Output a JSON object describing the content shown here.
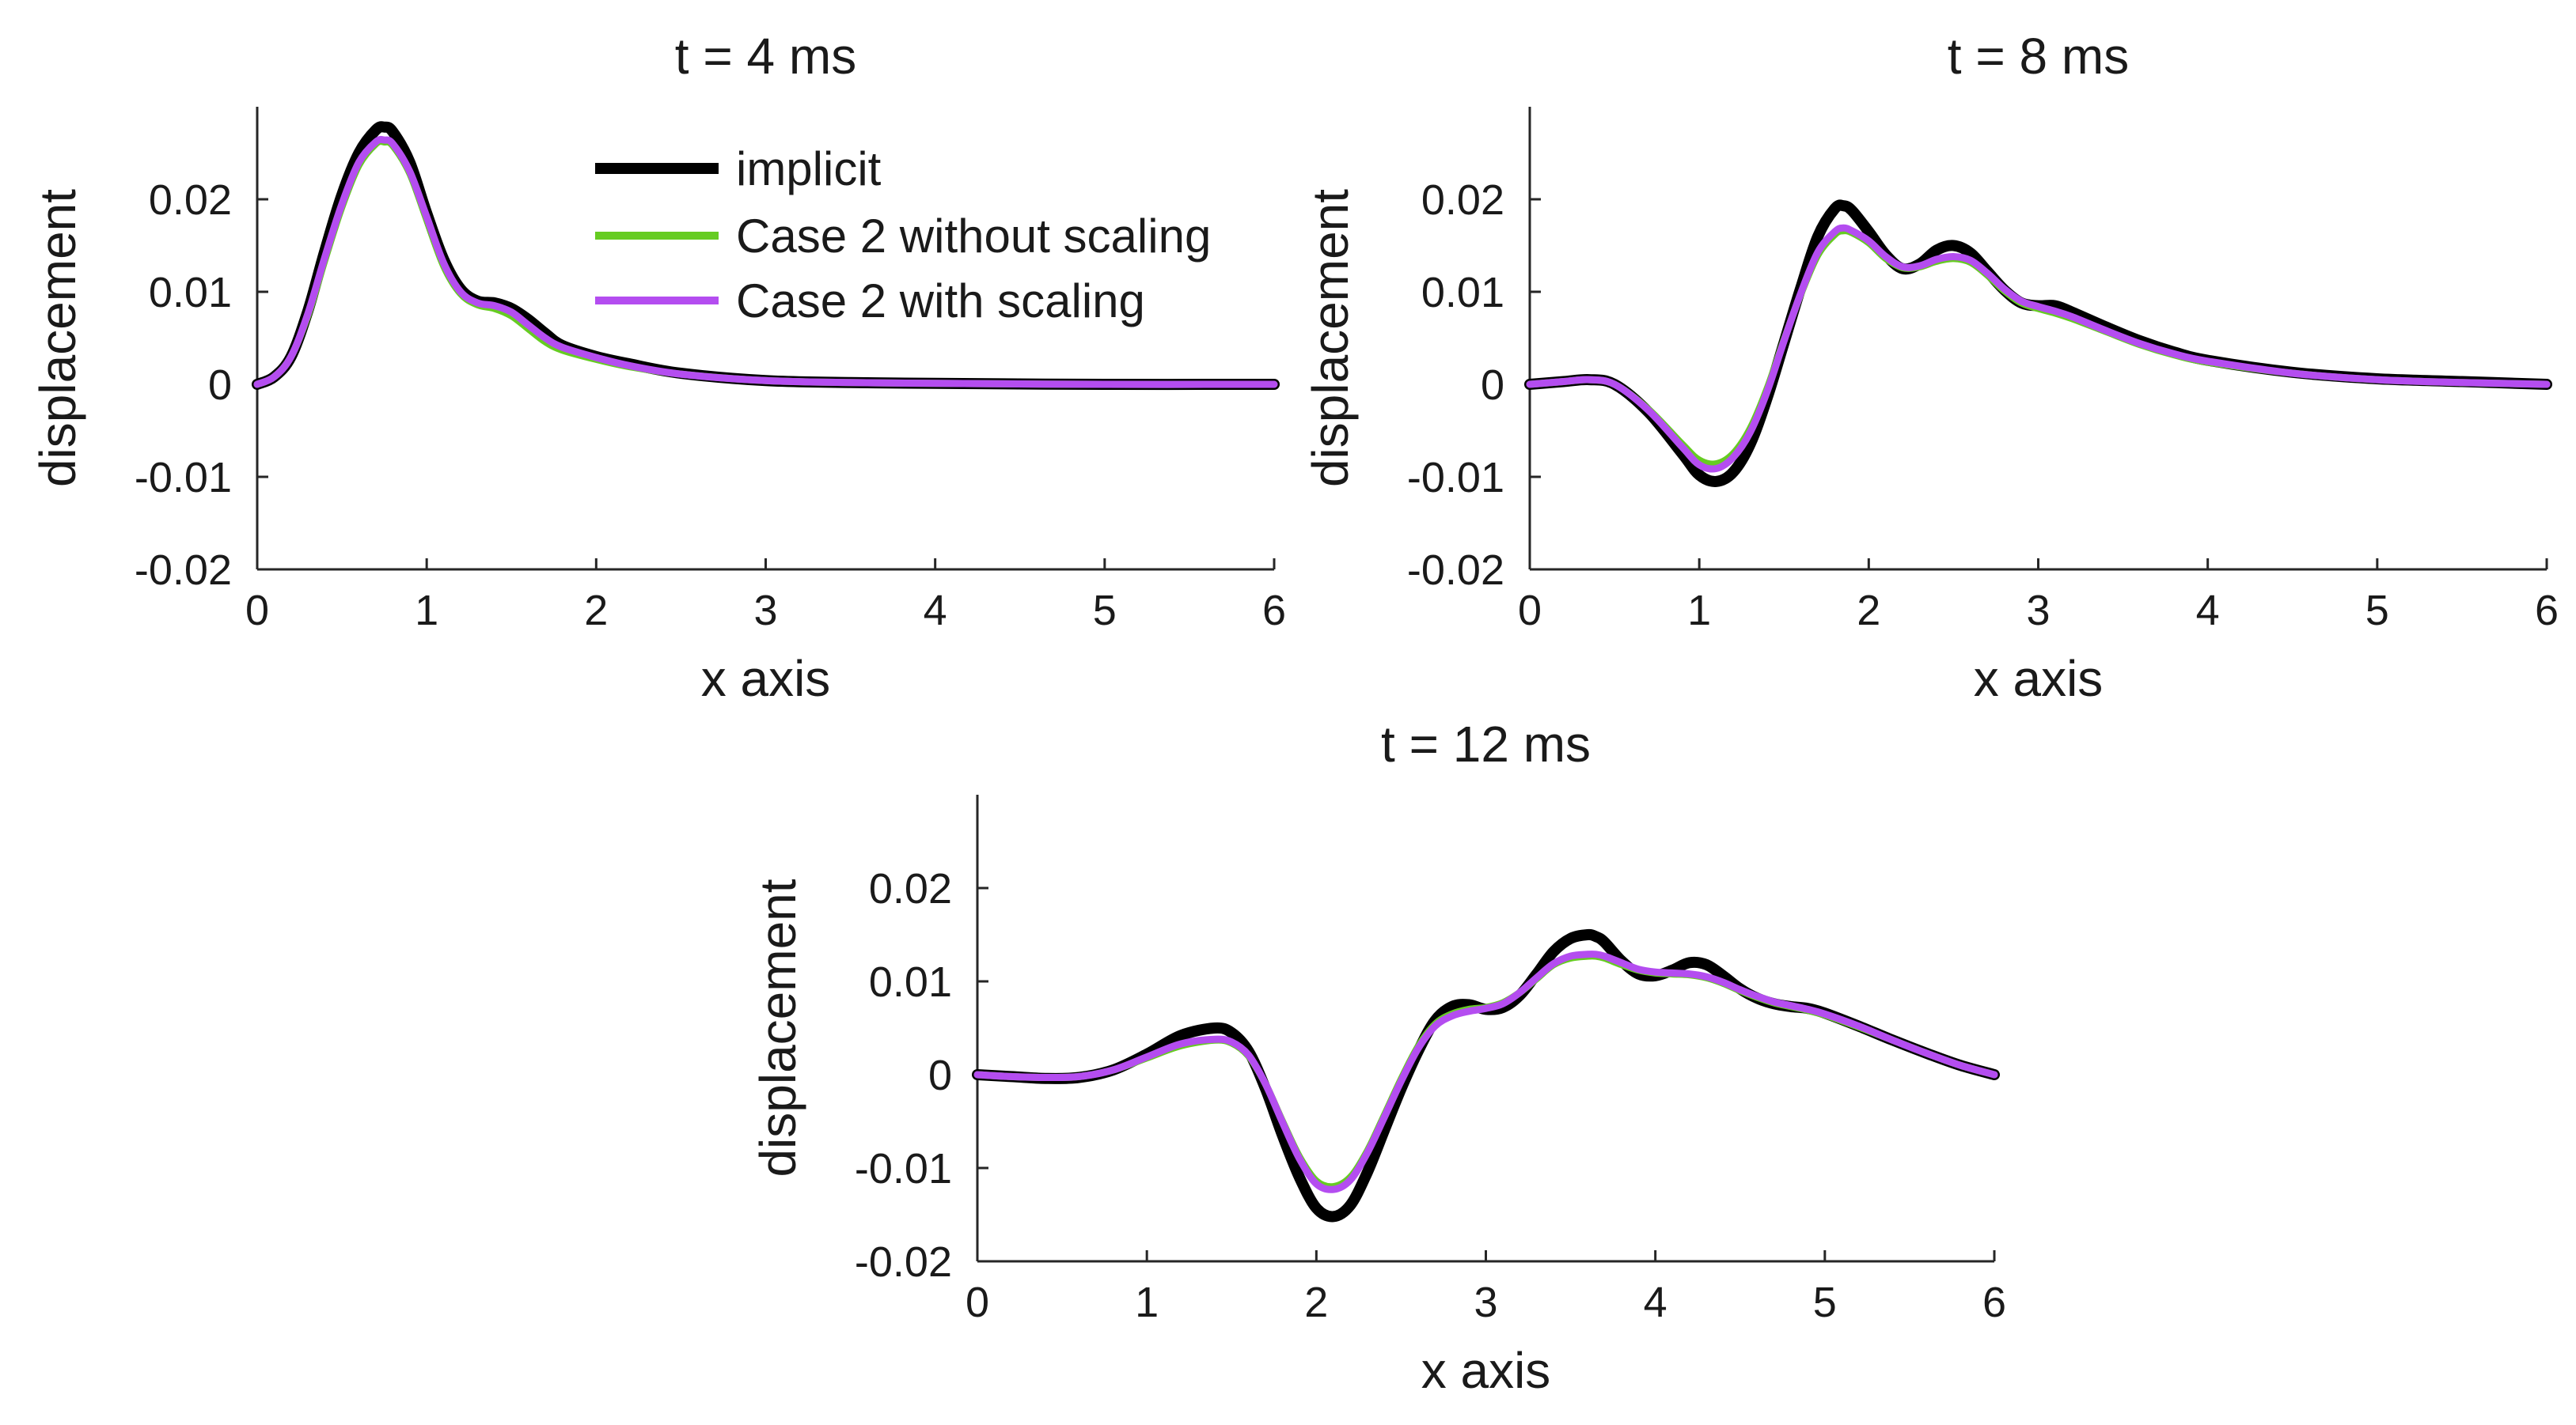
{
  "chart_data": [
    {
      "type": "line",
      "title": "t = 4 ms",
      "xlabel": "x axis",
      "ylabel": "displacement",
      "xlim": [
        0,
        6
      ],
      "ylim": [
        -0.02,
        0.03
      ],
      "xticks": [
        "0",
        "1",
        "2",
        "3",
        "4",
        "5",
        "6"
      ],
      "yticks": [
        "-0.02",
        "-0.01",
        "0",
        "0.01",
        "0.02"
      ],
      "grid": false,
      "legend": "top-right (inside)",
      "series": [
        {
          "name": "implicit",
          "color": "#000000",
          "x": [
            0,
            0.1,
            0.2,
            0.3,
            0.4,
            0.5,
            0.6,
            0.7,
            0.75,
            0.8,
            0.9,
            1.0,
            1.1,
            1.2,
            1.3,
            1.4,
            1.5,
            1.6,
            1.7,
            1.8,
            2.0,
            2.2,
            2.5,
            3.0,
            3.5,
            4.0,
            5.0,
            6.0
          ],
          "y": [
            0,
            0.0008,
            0.003,
            0.008,
            0.0145,
            0.0205,
            0.025,
            0.0275,
            0.0278,
            0.0273,
            0.024,
            0.0185,
            0.0135,
            0.0103,
            0.009,
            0.0088,
            0.0082,
            0.007,
            0.0055,
            0.0042,
            0.003,
            0.0022,
            0.0012,
            0.0004,
            0.0002,
            0.0001,
            0,
            0
          ]
        },
        {
          "name": "Case 2 without scaling",
          "color": "#66cc22",
          "x": [
            0,
            0.1,
            0.2,
            0.3,
            0.4,
            0.5,
            0.6,
            0.7,
            0.75,
            0.8,
            0.9,
            1.0,
            1.1,
            1.2,
            1.3,
            1.4,
            1.5,
            1.6,
            1.7,
            1.8,
            2.0,
            2.2,
            2.5,
            3.0,
            3.5,
            4.0,
            5.0,
            6.0
          ],
          "y": [
            0,
            0.0008,
            0.003,
            0.0075,
            0.0135,
            0.0192,
            0.0237,
            0.026,
            0.0262,
            0.0258,
            0.0228,
            0.0178,
            0.0128,
            0.0098,
            0.0086,
            0.0082,
            0.0074,
            0.006,
            0.0046,
            0.0037,
            0.0027,
            0.0019,
            0.0011,
            0.0004,
            0.0002,
            0.0001,
            0,
            0
          ]
        },
        {
          "name": "Case 2 with scaling",
          "color": "#b44df0",
          "x": [
            0,
            0.1,
            0.2,
            0.3,
            0.4,
            0.5,
            0.6,
            0.7,
            0.75,
            0.8,
            0.9,
            1.0,
            1.1,
            1.2,
            1.3,
            1.4,
            1.5,
            1.6,
            1.7,
            1.8,
            2.0,
            2.2,
            2.5,
            3.0,
            3.5,
            4.0,
            5.0,
            6.0
          ],
          "y": [
            0,
            0.0008,
            0.003,
            0.0077,
            0.0138,
            0.0195,
            0.024,
            0.0262,
            0.0264,
            0.026,
            0.023,
            0.0181,
            0.0131,
            0.01,
            0.0088,
            0.0085,
            0.0078,
            0.0064,
            0.005,
            0.004,
            0.0029,
            0.002,
            0.0011,
            0.0004,
            0.0002,
            0.0001,
            0,
            0
          ]
        }
      ]
    },
    {
      "type": "line",
      "title": "t = 8 ms",
      "xlabel": "x axis",
      "ylabel": "displacement",
      "xlim": [
        0,
        6
      ],
      "ylim": [
        -0.02,
        0.03
      ],
      "xticks": [
        "0",
        "1",
        "2",
        "3",
        "4",
        "5",
        "6"
      ],
      "yticks": [
        "-0.02",
        "-0.01",
        "0",
        "0.01",
        "0.02"
      ],
      "grid": false,
      "series": [
        {
          "name": "implicit",
          "color": "#000000",
          "x": [
            0,
            0.2,
            0.35,
            0.5,
            0.7,
            0.9,
            1.0,
            1.1,
            1.2,
            1.3,
            1.4,
            1.5,
            1.6,
            1.7,
            1.8,
            1.85,
            1.9,
            2.0,
            2.1,
            2.2,
            2.3,
            2.4,
            2.5,
            2.6,
            2.7,
            2.8,
            2.9,
            3.0,
            3.1,
            3.2,
            3.4,
            3.6,
            3.8,
            4.0,
            4.5,
            5.0,
            5.5,
            6.0
          ],
          "y": [
            0,
            0.0003,
            0.0005,
            0.0,
            -0.003,
            -0.0075,
            -0.0098,
            -0.0105,
            -0.0095,
            -0.0065,
            -0.0015,
            0.0045,
            0.0105,
            0.016,
            0.019,
            0.0193,
            0.0188,
            0.0165,
            0.014,
            0.0125,
            0.013,
            0.0145,
            0.015,
            0.0142,
            0.0122,
            0.0102,
            0.0088,
            0.0085,
            0.0085,
            0.0078,
            0.0062,
            0.0047,
            0.0035,
            0.0026,
            0.0013,
            0.0006,
            0.0003,
            0
          ]
        },
        {
          "name": "Case 2 without scaling",
          "color": "#66cc22",
          "x": [
            0,
            0.2,
            0.35,
            0.5,
            0.7,
            0.9,
            1.0,
            1.1,
            1.2,
            1.3,
            1.4,
            1.5,
            1.6,
            1.7,
            1.8,
            1.85,
            1.9,
            2.0,
            2.1,
            2.2,
            2.3,
            2.4,
            2.5,
            2.6,
            2.7,
            2.8,
            2.9,
            3.0,
            3.1,
            3.2,
            3.4,
            3.6,
            3.8,
            4.0,
            4.5,
            5.0,
            5.5,
            6.0
          ],
          "y": [
            0,
            0.0003,
            0.0005,
            0.0,
            -0.0027,
            -0.0065,
            -0.0082,
            -0.0086,
            -0.0075,
            -0.0048,
            -0.0005,
            0.0048,
            0.0098,
            0.014,
            0.0162,
            0.0166,
            0.0164,
            0.0153,
            0.0136,
            0.0126,
            0.0127,
            0.0133,
            0.0136,
            0.0132,
            0.0118,
            0.0101,
            0.0088,
            0.0082,
            0.0077,
            0.0071,
            0.0057,
            0.0043,
            0.0032,
            0.0024,
            0.0012,
            0.0005,
            0.0002,
            0
          ]
        },
        {
          "name": "Case 2 with scaling",
          "color": "#b44df0",
          "x": [
            0,
            0.2,
            0.35,
            0.5,
            0.7,
            0.9,
            1.0,
            1.1,
            1.2,
            1.3,
            1.4,
            1.5,
            1.6,
            1.7,
            1.8,
            1.85,
            1.9,
            2.0,
            2.1,
            2.2,
            2.3,
            2.4,
            2.5,
            2.6,
            2.7,
            2.8,
            2.9,
            3.0,
            3.1,
            3.2,
            3.4,
            3.6,
            3.8,
            4.0,
            4.5,
            5.0,
            5.5,
            6.0
          ],
          "y": [
            0,
            0.0003,
            0.0005,
            0.0,
            -0.0028,
            -0.0068,
            -0.0087,
            -0.0091,
            -0.0079,
            -0.0052,
            -0.0008,
            0.0047,
            0.0099,
            0.0143,
            0.0165,
            0.0169,
            0.0166,
            0.0155,
            0.0138,
            0.0127,
            0.0128,
            0.0135,
            0.0138,
            0.0134,
            0.012,
            0.0103,
            0.009,
            0.0084,
            0.0079,
            0.0073,
            0.0058,
            0.0044,
            0.0033,
            0.0025,
            0.0012,
            0.0005,
            0.0002,
            0
          ]
        }
      ]
    },
    {
      "type": "line",
      "title": "t = 12 ms",
      "xlabel": "x axis",
      "ylabel": "displacement",
      "xlim": [
        0,
        6
      ],
      "ylim": [
        -0.02,
        0.03
      ],
      "xticks": [
        "0",
        "1",
        "2",
        "3",
        "4",
        "5",
        "6"
      ],
      "yticks": [
        "-0.02",
        "-0.01",
        "0",
        "0.01",
        "0.02"
      ],
      "grid": false,
      "series": [
        {
          "name": "implicit",
          "color": "#000000",
          "x": [
            0,
            0.2,
            0.4,
            0.6,
            0.8,
            1.0,
            1.2,
            1.4,
            1.5,
            1.6,
            1.7,
            1.8,
            1.9,
            2.0,
            2.1,
            2.2,
            2.3,
            2.4,
            2.5,
            2.6,
            2.7,
            2.8,
            2.9,
            3.0,
            3.1,
            3.2,
            3.3,
            3.4,
            3.5,
            3.6,
            3.65,
            3.7,
            3.8,
            3.9,
            4.0,
            4.1,
            4.2,
            4.3,
            4.4,
            4.5,
            4.6,
            4.7,
            4.8,
            4.9,
            5.0,
            5.2,
            5.4,
            5.6,
            5.8,
            6.0
          ],
          "y": [
            0,
            -0.0002,
            -0.0004,
            -0.0003,
            0.0005,
            0.0022,
            0.0042,
            0.005,
            0.0045,
            0.0025,
            -0.0015,
            -0.0065,
            -0.011,
            -0.0143,
            -0.0152,
            -0.014,
            -0.0105,
            -0.006,
            -0.0015,
            0.0025,
            0.0058,
            0.0073,
            0.0075,
            0.007,
            0.0072,
            0.0085,
            0.0108,
            0.0132,
            0.0146,
            0.015,
            0.0148,
            0.0142,
            0.0122,
            0.0108,
            0.0106,
            0.0112,
            0.012,
            0.0118,
            0.0106,
            0.0092,
            0.0082,
            0.0076,
            0.0073,
            0.0071,
            0.0066,
            0.0052,
            0.0037,
            0.0023,
            0.001,
            0
          ]
        },
        {
          "name": "Case 2 without scaling",
          "color": "#66cc22",
          "x": [
            0,
            0.2,
            0.4,
            0.6,
            0.8,
            1.0,
            1.2,
            1.4,
            1.5,
            1.6,
            1.7,
            1.8,
            1.9,
            2.0,
            2.1,
            2.2,
            2.3,
            2.4,
            2.5,
            2.6,
            2.7,
            2.8,
            2.9,
            3.0,
            3.1,
            3.2,
            3.3,
            3.4,
            3.5,
            3.6,
            3.65,
            3.7,
            3.8,
            3.9,
            4.0,
            4.1,
            4.2,
            4.3,
            4.4,
            4.5,
            4.6,
            4.7,
            4.8,
            4.9,
            5.0,
            5.2,
            5.4,
            5.6,
            5.8,
            6.0
          ],
          "y": [
            0,
            -0.0002,
            -0.0003,
            -0.0002,
            0.0005,
            0.0018,
            0.0031,
            0.0037,
            0.0034,
            0.002,
            -0.001,
            -0.005,
            -0.0088,
            -0.0114,
            -0.012,
            -0.011,
            -0.0082,
            -0.0044,
            -0.0005,
            0.003,
            0.0054,
            0.0065,
            0.007,
            0.0072,
            0.0077,
            0.0088,
            0.0103,
            0.0118,
            0.0125,
            0.0127,
            0.0127,
            0.0125,
            0.0118,
            0.0112,
            0.0109,
            0.0108,
            0.0107,
            0.0104,
            0.0098,
            0.009,
            0.0083,
            0.0077,
            0.0073,
            0.0069,
            0.0064,
            0.0051,
            0.0037,
            0.0023,
            0.001,
            0
          ]
        },
        {
          "name": "Case 2 with scaling",
          "color": "#b44df0",
          "x": [
            0,
            0.2,
            0.4,
            0.6,
            0.8,
            1.0,
            1.2,
            1.4,
            1.5,
            1.6,
            1.7,
            1.8,
            1.9,
            2.0,
            2.1,
            2.2,
            2.3,
            2.4,
            2.5,
            2.6,
            2.7,
            2.8,
            2.9,
            3.0,
            3.1,
            3.2,
            3.3,
            3.4,
            3.5,
            3.6,
            3.65,
            3.7,
            3.8,
            3.9,
            4.0,
            4.1,
            4.2,
            4.3,
            4.4,
            4.5,
            4.6,
            4.7,
            4.8,
            4.9,
            5.0,
            5.2,
            5.4,
            5.6,
            5.8,
            6.0
          ],
          "y": [
            0,
            -0.0002,
            -0.0003,
            -0.0002,
            0.0005,
            0.0019,
            0.0033,
            0.0038,
            0.0035,
            0.0021,
            -0.001,
            -0.0051,
            -0.009,
            -0.0117,
            -0.0123,
            -0.0113,
            -0.0084,
            -0.0046,
            -0.0007,
            0.0028,
            0.0052,
            0.0063,
            0.0068,
            0.0071,
            0.0076,
            0.0088,
            0.0104,
            0.0119,
            0.0127,
            0.0129,
            0.0129,
            0.0127,
            0.012,
            0.0113,
            0.011,
            0.0109,
            0.0108,
            0.0105,
            0.0099,
            0.0091,
            0.0084,
            0.0078,
            0.0074,
            0.007,
            0.0065,
            0.0052,
            0.0037,
            0.0023,
            0.001,
            0
          ]
        }
      ]
    }
  ]
}
